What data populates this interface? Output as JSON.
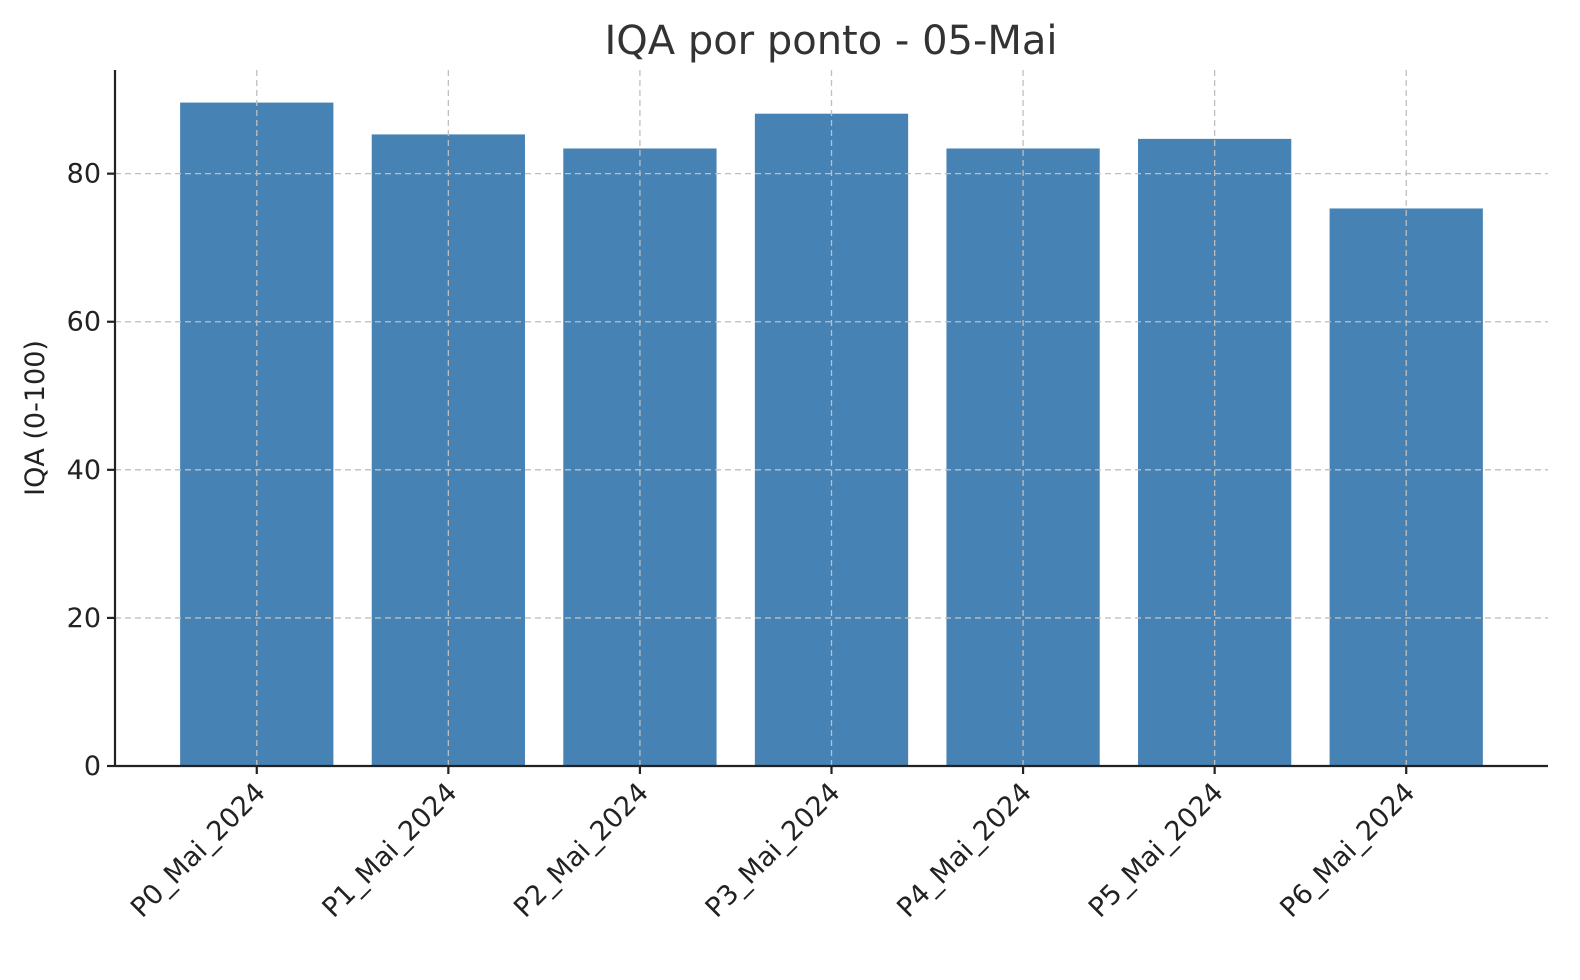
{
  "chart_data": {
    "type": "bar",
    "title": "IQA por ponto - 05-Mai",
    "xlabel": "",
    "ylabel": "IQA (0-100)",
    "categories": [
      "P0_Mai_2024",
      "P1_Mai_2024",
      "P2_Mai_2024",
      "P3_Mai_2024",
      "P4_Mai_2024",
      "P5_Mai_2024",
      "P6_Mai_2024"
    ],
    "values": [
      89.6,
      85.3,
      83.4,
      88.1,
      83.4,
      84.7,
      75.3
    ],
    "ylim": [
      0,
      94
    ],
    "yticks": [
      0,
      20,
      40,
      60,
      80
    ],
    "grid": true,
    "bar_color": "#4682b4"
  }
}
